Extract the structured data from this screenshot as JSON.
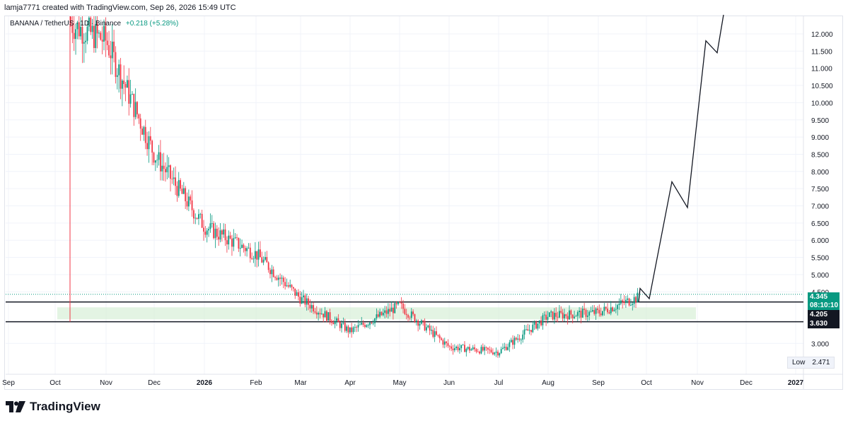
{
  "header": {
    "caption": "lamja7771 created with TradingView.com, Sep 26, 2026 15:49 UTC"
  },
  "legend": {
    "symbol": "BANANA / TetherUS · 1D · Binance",
    "change": "+0.218 (+5.28%)"
  },
  "price_tags": {
    "last_price": "4.345",
    "countdown": "08:10:10",
    "line_a": "4.205",
    "line_b": "3.630"
  },
  "low_box": {
    "label": "Low",
    "value": "2.471"
  },
  "footer": {
    "brand": "TradingView"
  },
  "colors": {
    "up": "#089981",
    "down": "#f23645",
    "zone": "#d9f0d9",
    "line": "#131722",
    "grid": "#f0f3fa"
  },
  "chart_data": {
    "type": "candlestick",
    "title": "",
    "xlabel": "",
    "ylabel": "",
    "y_axis_labels": [
      "12.000",
      "11.500",
      "11.000",
      "10.500",
      "10.000",
      "9.500",
      "9.000",
      "8.500",
      "8.000",
      "7.500",
      "7.000",
      "6.500",
      "6.000",
      "5.500",
      "5.000",
      "4.500",
      "3.000"
    ],
    "x_axis_labels": [
      "Sep",
      "Oct",
      "Nov",
      "Dec",
      "2026",
      "Feb",
      "Mar",
      "Apr",
      "May",
      "Jun",
      "Jul",
      "Aug",
      "Sep",
      "Oct",
      "Nov",
      "Dec",
      "2027"
    ],
    "horizontal_lines": [
      4.205,
      3.63
    ],
    "support_zone": [
      3.7,
      4.05
    ],
    "projection": [
      {
        "month": "Sep 26",
        "price": 4.2
      },
      {
        "month": "Sep 30",
        "price": 4.6
      },
      {
        "month": "Oct 4",
        "price": 4.3
      },
      {
        "month": "Oct 19",
        "price": 7.7
      },
      {
        "month": "Oct 30",
        "price": 6.95
      },
      {
        "month": "Nov 5",
        "price": 11.8
      },
      {
        "month": "Nov 15",
        "price": 11.45
      },
      {
        "month": "Nov 20",
        "price": 12.6
      }
    ],
    "price_path_approx": [
      {
        "month": "Oct",
        "price": 12.5
      },
      {
        "month": "Nov",
        "price": 11.8
      },
      {
        "month": "Dec",
        "price": 8.5
      },
      {
        "month": "2026",
        "price": 6.4
      },
      {
        "month": "Feb",
        "price": 5.6
      },
      {
        "month": "Mar",
        "price": 4.3
      },
      {
        "month": "Apr",
        "price": 3.35
      },
      {
        "month": "May",
        "price": 4.1
      },
      {
        "month": "Jun",
        "price": 2.9
      },
      {
        "month": "Jul",
        "price": 2.75
      },
      {
        "month": "Aug",
        "price": 3.8
      },
      {
        "month": "Sep",
        "price": 3.9
      },
      {
        "month": "Sep 26",
        "price": 4.345
      }
    ]
  }
}
